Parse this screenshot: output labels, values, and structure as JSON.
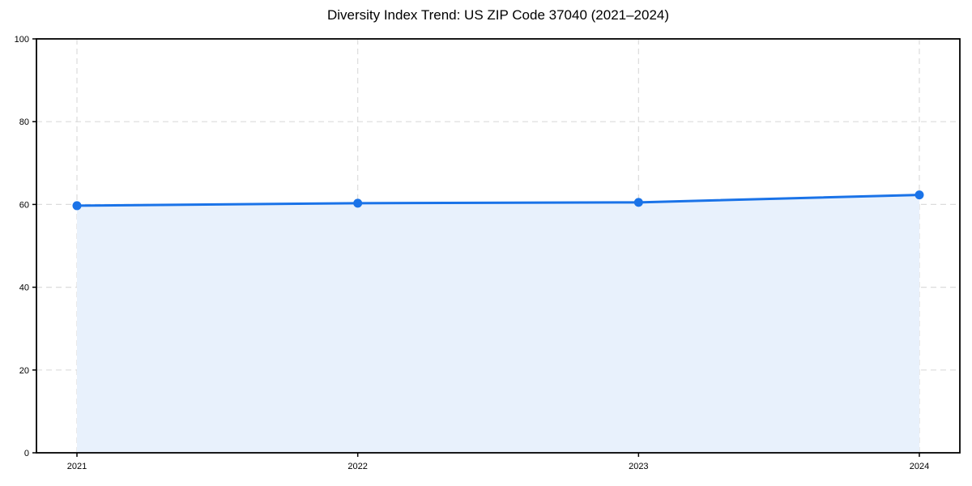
{
  "chart_data": {
    "type": "line",
    "title": "Diversity Index Trend: US ZIP Code 37040 (2021–2024)",
    "x": [
      2021,
      2022,
      2023,
      2024
    ],
    "series": [
      {
        "name": "Diversity Index",
        "values": [
          59.7,
          60.3,
          60.5,
          62.3
        ]
      }
    ],
    "xlabel": "",
    "ylabel": "",
    "ylim": [
      0,
      100
    ],
    "yticks": [
      0,
      20,
      40,
      60,
      80,
      100
    ],
    "xticks": [
      "2021",
      "2022",
      "2023",
      "2024"
    ],
    "grid": "dashed",
    "legend": "none",
    "area_fill": true,
    "marker": "circle",
    "colors": {
      "line": "#1a73e8",
      "area": "#e8f1fc",
      "grid": "#dcdcdc",
      "spine": "#000000",
      "tick_text": "#000000",
      "background": "#ffffff"
    }
  }
}
